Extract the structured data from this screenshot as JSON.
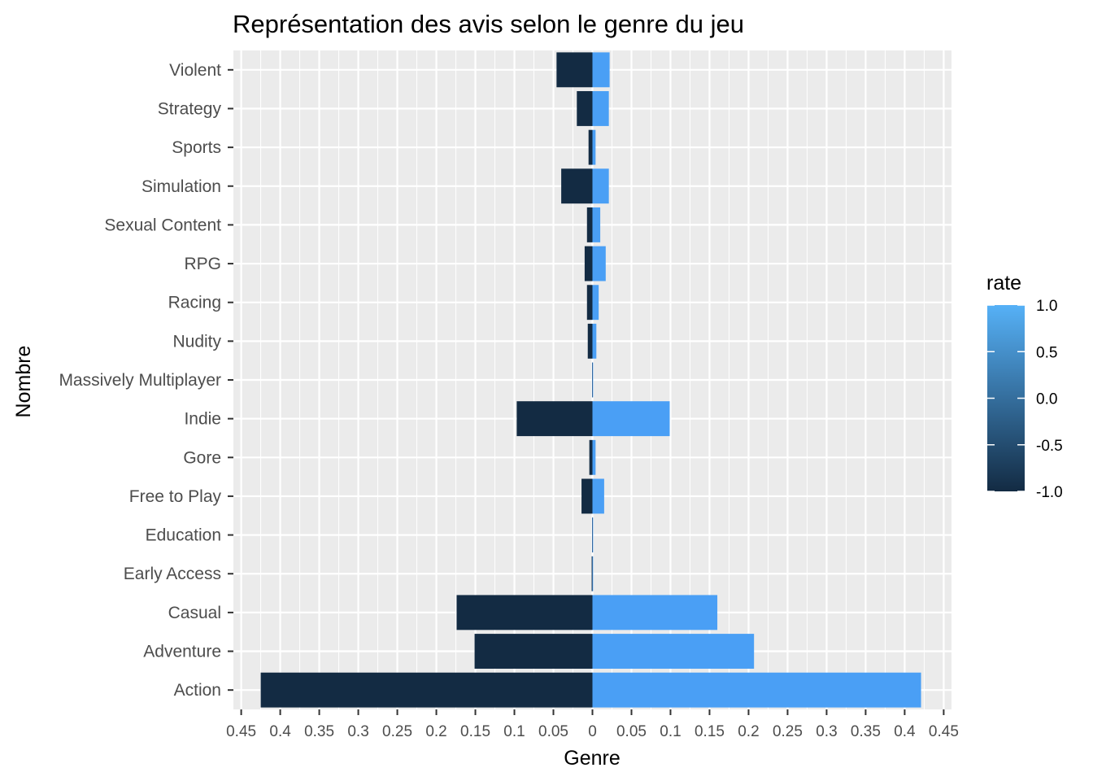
{
  "chart_data": {
    "type": "bar",
    "orientation": "horizontal",
    "layout": "diverging",
    "title": "Représentation des avis selon le genre du jeu",
    "xlabel": "Genre",
    "ylabel": "Nombre",
    "categories": [
      "Violent",
      "Strategy",
      "Sports",
      "Simulation",
      "Sexual Content",
      "RPG",
      "Racing",
      "Nudity",
      "Massively Multiplayer",
      "Indie",
      "Gore",
      "Free to Play",
      "Education",
      "Early Access",
      "Casual",
      "Adventure",
      "Action"
    ],
    "series": [
      {
        "rate": -1.0,
        "values": [
          -0.046,
          -0.02,
          -0.005,
          -0.04,
          -0.007,
          -0.01,
          -0.007,
          -0.006,
          -0.0005,
          -0.097,
          -0.004,
          -0.014,
          -0.0005,
          -0.001,
          -0.174,
          -0.151,
          -0.425
        ]
      },
      {
        "rate": 1.0,
        "values": [
          0.022,
          0.021,
          0.004,
          0.021,
          0.01,
          0.017,
          0.008,
          0.005,
          0.0005,
          0.099,
          0.004,
          0.015,
          0.0005,
          0.0,
          0.16,
          0.207,
          0.421
        ]
      }
    ],
    "xlim": [
      -0.46,
      0.46
    ],
    "x_ticks": [
      -0.45,
      -0.4,
      -0.35,
      -0.3,
      -0.25,
      -0.2,
      -0.15,
      -0.1,
      -0.05,
      0,
      0.05,
      0.1,
      0.15,
      0.2,
      0.25,
      0.3,
      0.35,
      0.4,
      0.45
    ],
    "x_tick_labels": [
      "0.45",
      "0.4",
      "0.35",
      "0.3",
      "0.25",
      "0.2",
      "0.15",
      "0.1",
      "0.05",
      "0",
      "0.05",
      "0.1",
      "0.15",
      "0.2",
      "0.25",
      "0.3",
      "0.35",
      "0.4",
      "0.45"
    ],
    "grid": true,
    "legend": {
      "title": "rate",
      "type": "colorbar",
      "position": "right",
      "ticks": [
        1.0,
        0.5,
        0.0,
        -0.5,
        -1.0
      ],
      "tick_labels": [
        "1.0",
        "0.5",
        "0.0",
        "-0.5",
        "-1.0"
      ],
      "low_color": "#132B43",
      "high_color": "#56B1F7"
    },
    "colors": {
      "negative": "#132B43",
      "positive": "#4A9FF5",
      "panel": "#EBEBEB",
      "grid": "#FFFFFF"
    }
  }
}
